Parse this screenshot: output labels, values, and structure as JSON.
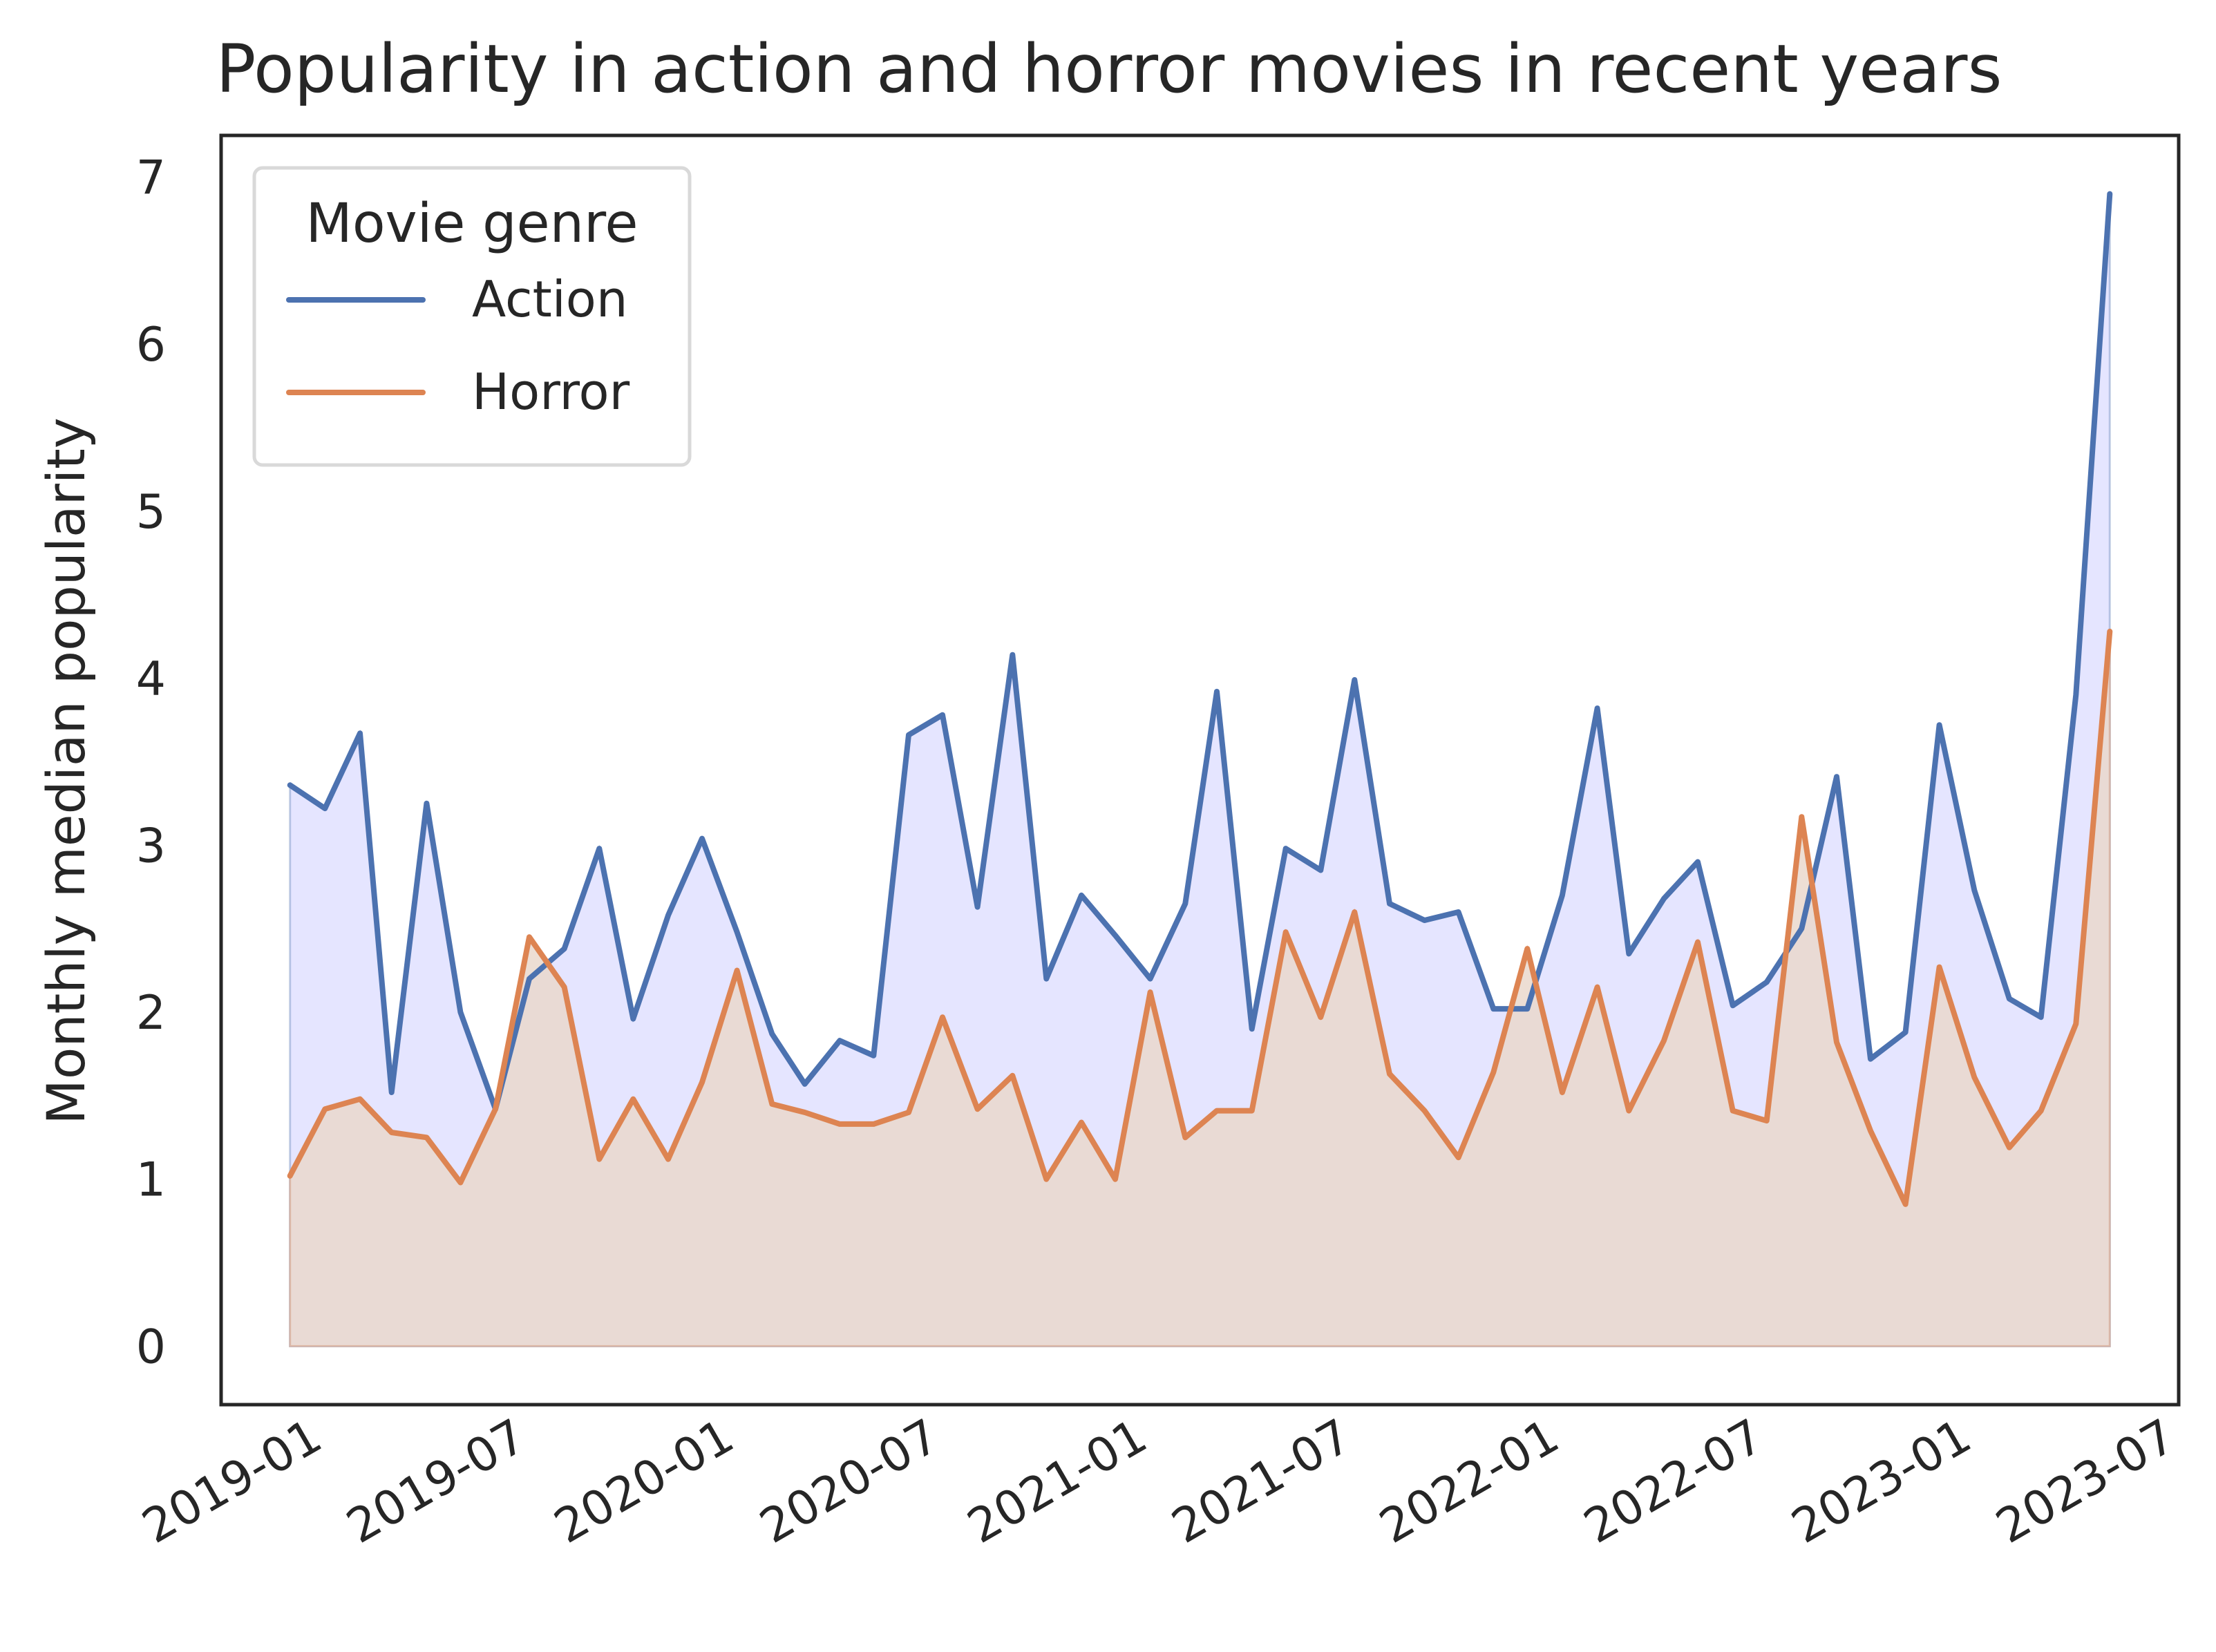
{
  "chart_data": {
    "type": "line",
    "title": "Popularity in action and horror movies in recent years",
    "xlabel": "",
    "ylabel": "Monthly median popularity",
    "x_ticks": [
      "2019-01",
      "2019-07",
      "2020-01",
      "2020-07",
      "2021-01",
      "2021-07",
      "2022-01",
      "2022-07",
      "2023-01",
      "2023-07"
    ],
    "y_ticks": [
      0,
      1,
      2,
      3,
      4,
      5,
      6,
      7
    ],
    "ylim": [
      -0.35,
      7.25
    ],
    "xlim": [
      "2018-10-01",
      "2023-07-01"
    ],
    "grid": false,
    "legend": {
      "title": "Movie genre",
      "position": "top-left"
    },
    "x": [
      "2018-12-01",
      "2019-01-01",
      "2019-02-01",
      "2019-03-01",
      "2019-04-01",
      "2019-05-01",
      "2019-06-01",
      "2019-07-01",
      "2019-08-01",
      "2019-09-01",
      "2019-10-01",
      "2019-11-01",
      "2019-12-01",
      "2020-01-01",
      "2020-02-01",
      "2020-03-01",
      "2020-04-01",
      "2020-05-01",
      "2020-06-01",
      "2020-07-01",
      "2020-08-01",
      "2020-09-01",
      "2020-10-01",
      "2020-11-01",
      "2020-12-01",
      "2021-01-01",
      "2021-02-01",
      "2021-03-01",
      "2021-04-01",
      "2021-05-01",
      "2021-06-01",
      "2021-07-01",
      "2021-08-01",
      "2021-09-01",
      "2021-10-01",
      "2021-11-01",
      "2021-12-01",
      "2022-01-01",
      "2022-02-01",
      "2022-03-01",
      "2022-04-01",
      "2022-05-01",
      "2022-06-01",
      "2022-07-01",
      "2022-08-01",
      "2022-09-01",
      "2022-10-01",
      "2022-11-01",
      "2022-12-01",
      "2023-01-01",
      "2023-02-01",
      "2023-03-01",
      "2023-04-01",
      "2023-05-01"
    ],
    "series": [
      {
        "name": "Action",
        "color": "#4c72b0",
        "fill": "#e5e5ff",
        "values": [
          3.36,
          3.22,
          3.67,
          1.52,
          3.25,
          2.0,
          1.42,
          2.2,
          2.38,
          2.98,
          1.96,
          2.58,
          3.04,
          2.48,
          1.87,
          1.57,
          1.83,
          1.74,
          3.66,
          3.78,
          2.63,
          4.14,
          2.2,
          2.7,
          2.46,
          2.2,
          2.65,
          3.92,
          1.9,
          2.98,
          2.85,
          3.99,
          2.65,
          2.55,
          2.6,
          2.02,
          2.02,
          2.7,
          3.82,
          2.35,
          2.68,
          2.9,
          2.04,
          2.18,
          2.5,
          3.41,
          1.72,
          1.88,
          3.72,
          2.73,
          2.08,
          1.97,
          3.9,
          6.9
        ]
      },
      {
        "name": "Horror",
        "color": "#dd8452",
        "fill": "#ead8cc",
        "values": [
          1.02,
          1.42,
          1.48,
          1.28,
          1.25,
          0.98,
          1.42,
          2.45,
          2.15,
          1.12,
          1.48,
          1.12,
          1.58,
          2.25,
          1.45,
          1.4,
          1.33,
          1.33,
          1.4,
          1.97,
          1.42,
          1.62,
          1.0,
          1.34,
          1.0,
          2.12,
          1.25,
          1.41,
          1.41,
          2.48,
          1.97,
          2.6,
          1.63,
          1.41,
          1.13,
          1.64,
          2.38,
          1.52,
          2.15,
          1.41,
          1.83,
          2.42,
          1.41,
          1.35,
          3.17,
          1.82,
          1.29,
          0.85,
          2.27,
          1.61,
          1.19,
          1.41,
          1.93,
          4.28
        ]
      }
    ]
  }
}
